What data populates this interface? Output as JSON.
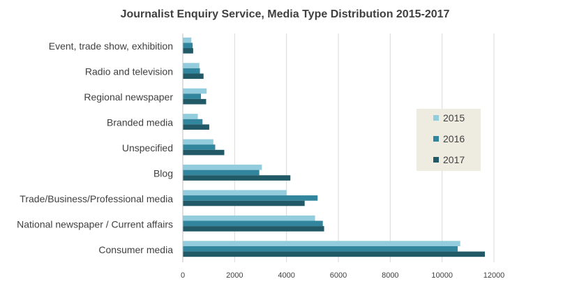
{
  "chart_data": {
    "type": "bar",
    "orientation": "horizontal",
    "title": "Journalist Enquiry Service, Media Type Distribution 2015-2017",
    "xlabel": "",
    "ylabel": "",
    "categories": [
      "Consumer media",
      "National newspaper / Current affairs",
      "Trade/Business/Professional media",
      "Blog",
      "Unspecified",
      "Branded media",
      "Regional newspaper",
      "Radio and television",
      "Event, trade show, exhibition"
    ],
    "series": [
      {
        "name": "2015",
        "color": "#93CDDD",
        "values": [
          10700,
          5100,
          4000,
          3050,
          1180,
          580,
          920,
          640,
          330
        ]
      },
      {
        "name": "2016",
        "color": "#31859C",
        "values": [
          10600,
          5400,
          5200,
          2950,
          1250,
          760,
          700,
          660,
          380
        ]
      },
      {
        "name": "2017",
        "color": "#215967",
        "values": [
          11650,
          5450,
          4700,
          4150,
          1600,
          1020,
          900,
          800,
          400
        ]
      }
    ],
    "xlim": [
      0,
      12000
    ],
    "xticks": [
      "0",
      "2000",
      "4000",
      "6000",
      "8000",
      "10000",
      "12000"
    ],
    "grid": "vertical",
    "legend_position": "right",
    "legend_background": "#EEECE1"
  }
}
